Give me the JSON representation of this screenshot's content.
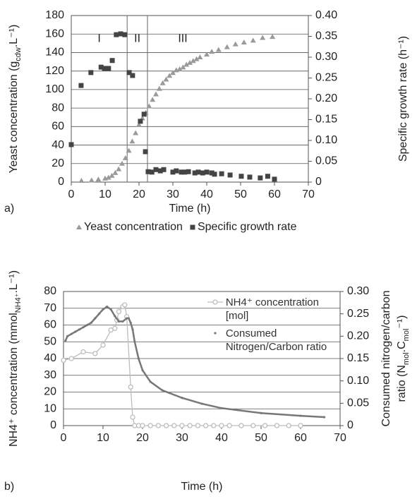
{
  "chart_data": [
    {
      "type": "scatter",
      "panel_label": "a)",
      "xlabel": [
        [
          "Time (h)"
        ]
      ],
      "ylabel": [
        [
          "Yeast concentration (g",
          "cdw",
          ".L⁻¹)"
        ]
      ],
      "y2label": [
        [
          "Specific growth rate (h⁻¹)"
        ]
      ],
      "xlim": [
        0,
        70
      ],
      "xticks": [
        0,
        10,
        20,
        30,
        40,
        50,
        60,
        70
      ],
      "ylim": [
        0,
        180
      ],
      "yticks": [
        0,
        20,
        40,
        60,
        80,
        100,
        120,
        140,
        160,
        180
      ],
      "y2lim": [
        0,
        0.4
      ],
      "y2ticks": [
        0,
        0.05,
        {
          "value": 0.1,
          "label": "0.10"
        },
        0.15,
        {
          "value": 0.2,
          "label": "0.20"
        },
        0.25,
        {
          "value": 0.3,
          "label": "0.30"
        },
        0.35,
        {
          "value": 0.4,
          "label": "0.40"
        }
      ],
      "grid": true,
      "phase_lines": [
        16.5,
        22.5
      ],
      "phase_labels": [
        "I",
        "II",
        "III"
      ],
      "legend": "bottom",
      "series": [
        {
          "name": "Yeast concentration",
          "color": "#9a9a9a",
          "marker": "triangle",
          "x": [
            3,
            6,
            8,
            10,
            11,
            12,
            13,
            14,
            15,
            16,
            17,
            18,
            19,
            20,
            21,
            22,
            23,
            24,
            25,
            26,
            27,
            28,
            29,
            30,
            31,
            32,
            33,
            34,
            35,
            36,
            37,
            38,
            40,
            41.5,
            43.5,
            46,
            48.5,
            51,
            53.7,
            56.5,
            59.4
          ],
          "values": [
            1.5,
            2,
            3,
            4,
            5,
            7,
            10,
            14,
            20,
            26,
            34,
            44,
            53,
            62,
            69,
            75,
            82,
            89,
            95,
            101,
            107,
            111,
            115,
            118,
            121,
            122,
            124,
            127,
            129,
            131,
            133,
            135,
            138,
            141,
            143,
            146,
            149,
            151,
            153,
            156,
            157
          ]
        },
        {
          "name": "Specific growth rate",
          "color": "#444444",
          "marker": "square",
          "axis": "y2",
          "x": [
            0,
            2.9,
            5.8,
            8.8,
            9.8,
            11,
            12.1,
            13.3,
            14.6,
            15.8,
            17.1,
            18.1,
            20.4,
            21.5,
            21.9,
            22.7,
            23.8,
            25,
            26.3,
            27.3,
            30,
            31,
            32.5,
            33.5,
            34.6,
            36.5,
            37.5,
            38.8,
            40,
            41.5,
            42.3,
            44.4,
            46.9,
            50.2,
            52.7,
            55.8,
            58,
            60
          ],
          "values": [
            0.09,
            0.232,
            0.263,
            0.276,
            0.273,
            0.273,
            0.292,
            0.354,
            0.356,
            0.354,
            0.263,
            0.256,
            0.146,
            0.163,
            0.073,
            0.025,
            0.024,
            0.03,
            0.027,
            0.03,
            0.024,
            0.027,
            0.024,
            0.024,
            0.025,
            0.022,
            0.024,
            0.022,
            0.024,
            0.022,
            0.019,
            0.02,
            0.017,
            0.014,
            0.012,
            0.01,
            0.014,
            0.007
          ]
        }
      ]
    },
    {
      "type": "line",
      "panel_label": "b)",
      "xlabel": [
        [
          "Time (h)"
        ]
      ],
      "ylabel": [
        [
          "NH4⁺ concentration (mmol",
          "NH4⁺",
          ".L⁻¹)"
        ]
      ],
      "y2label": [
        [
          "Consumed nitrogen/carbon"
        ],
        [
          "ratio (N",
          "mol",
          ".C",
          "mol",
          "⁻¹)"
        ]
      ],
      "xlim": [
        0,
        70
      ],
      "xticks": [
        0,
        10,
        20,
        30,
        40,
        50,
        60,
        70
      ],
      "ylim": [
        0,
        80
      ],
      "yticks": [
        0,
        10,
        20,
        30,
        40,
        50,
        60,
        70,
        80
      ],
      "y2lim": [
        0,
        0.3
      ],
      "y2ticks": [
        0,
        0.05,
        {
          "value": 0.1,
          "label": "0.10"
        },
        0.15,
        {
          "value": 0.2,
          "label": "0.20"
        },
        0.25,
        {
          "value": 0.3,
          "label": "0.30"
        }
      ],
      "grid": true,
      "legend": "top-right",
      "series": [
        {
          "name": "NH4⁺ concentration [mol]",
          "color": "#bdbdbd",
          "marker": "circle",
          "x": [
            0,
            2,
            5,
            8,
            10,
            12,
            13,
            13.5,
            14,
            15,
            15.5,
            16,
            17,
            17.5,
            18,
            19,
            20,
            22,
            24,
            26,
            28,
            30,
            32,
            34,
            36,
            38,
            40,
            42,
            45,
            48,
            51,
            54,
            57,
            60
          ],
          "values": [
            39,
            40,
            44,
            43,
            48,
            57,
            58,
            63,
            68,
            71,
            72,
            65,
            23,
            5,
            0,
            0,
            0,
            0,
            0,
            0,
            0,
            0,
            0,
            0,
            0,
            0,
            0,
            0,
            0,
            0,
            0,
            0,
            0,
            0
          ]
        },
        {
          "name": "Consumed Nitrogen/Carbon ratio",
          "color": "#777777",
          "marker": "dot",
          "axis": "y2",
          "x": [
            0.5,
            1,
            2,
            3,
            4,
            5,
            6,
            7,
            8,
            9,
            10,
            11,
            12,
            13,
            14,
            15,
            16,
            16.5,
            17,
            17.5,
            18,
            19,
            20,
            22,
            25,
            30,
            35,
            40,
            50,
            60,
            66
          ],
          "values": [
            0.19,
            0.2,
            0.205,
            0.21,
            0.215,
            0.22,
            0.225,
            0.23,
            0.24,
            0.25,
            0.26,
            0.266,
            0.26,
            0.245,
            0.233,
            0.233,
            0.24,
            0.24,
            0.23,
            0.215,
            0.188,
            0.15,
            0.124,
            0.098,
            0.079,
            0.062,
            0.049,
            0.039,
            0.028,
            0.022,
            0.019
          ]
        }
      ]
    }
  ]
}
